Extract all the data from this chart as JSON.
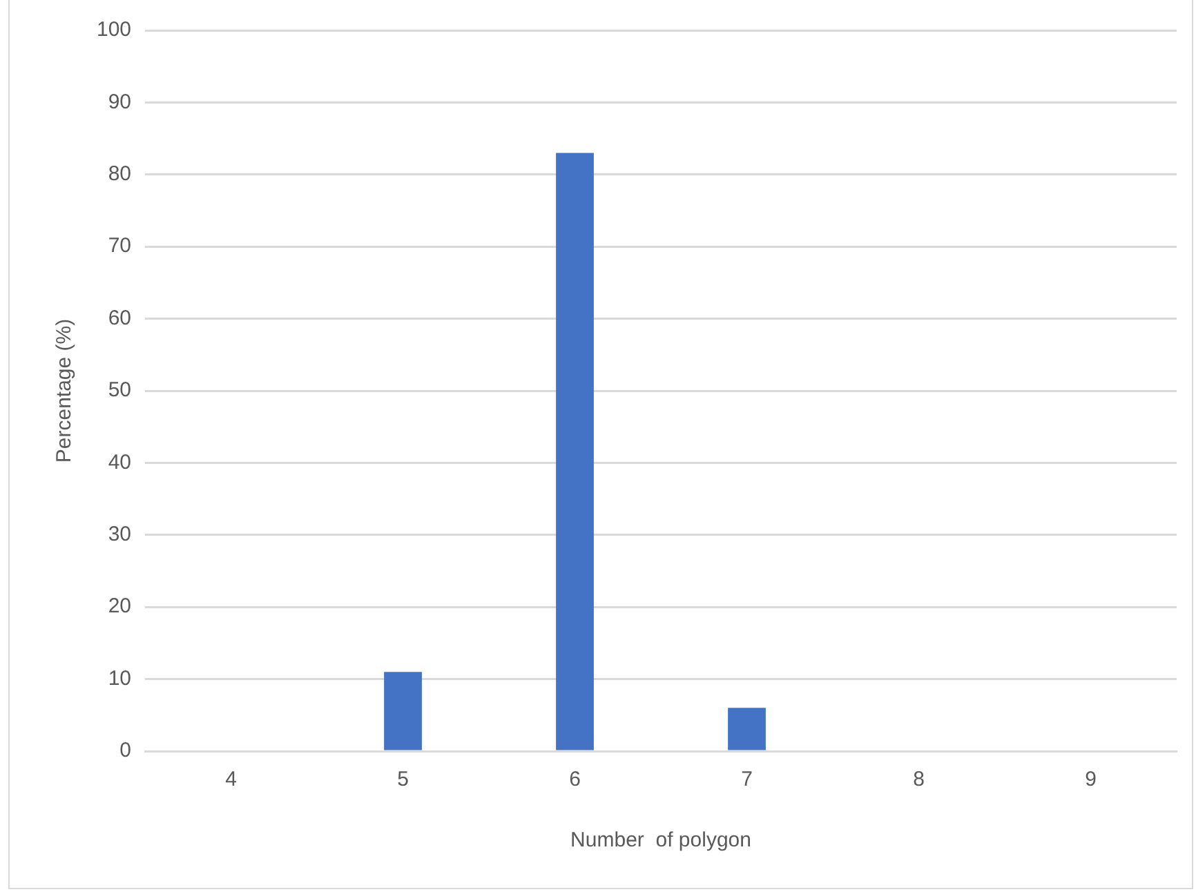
{
  "chart_data": {
    "type": "bar",
    "xlabel": "Number  of polygon",
    "ylabel": "Percentage (%)",
    "categories": [
      "4",
      "5",
      "6",
      "7",
      "8",
      "9"
    ],
    "values": [
      0,
      11,
      83,
      6,
      0,
      0
    ],
    "color": "#4472c4",
    "ylim": [
      0,
      100
    ],
    "yticks": [
      0,
      10,
      20,
      30,
      40,
      50,
      60,
      70,
      80,
      90,
      100
    ],
    "grid": "y",
    "legend": false
  }
}
